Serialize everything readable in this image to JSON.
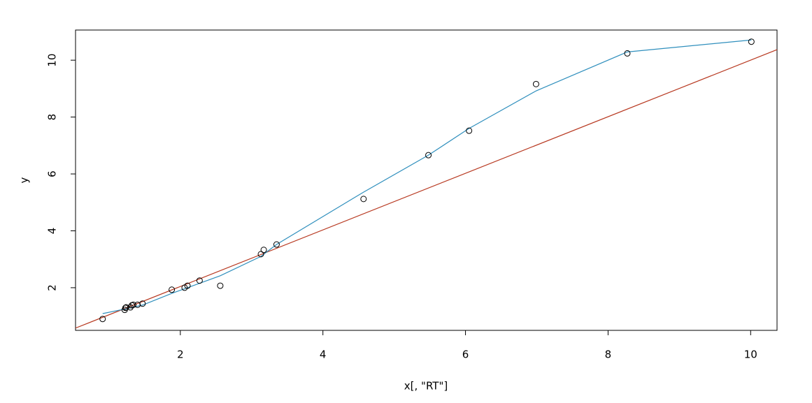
{
  "chart_data": {
    "type": "scatter",
    "xlabel": "x[, \"RT\"]",
    "ylabel": "y",
    "x": [
      0.91,
      1.22,
      1.23,
      1.24,
      1.3,
      1.32,
      1.34,
      1.4,
      1.47,
      1.88,
      2.06,
      2.1,
      2.27,
      2.56,
      3.13,
      3.17,
      3.35,
      4.57,
      5.48,
      6.05,
      6.99,
      8.27,
      10.01
    ],
    "y": [
      0.9,
      1.22,
      1.29,
      1.31,
      1.31,
      1.38,
      1.4,
      1.4,
      1.44,
      1.93,
      2.0,
      2.07,
      2.25,
      2.07,
      3.18,
      3.33,
      3.52,
      5.12,
      6.66,
      7.52,
      9.16,
      10.24,
      10.65
    ],
    "point_color": "#000000",
    "lines": [
      {
        "color": "#b83a22",
        "x": [
          0.53,
          10.37
        ],
        "y": [
          0.58,
          10.37
        ]
      },
      {
        "color": "#2f8fbd",
        "x": [
          0.91,
          1.24,
          1.47,
          1.88,
          2.1,
          2.56,
          3.13,
          3.35,
          4.57,
          5.48,
          6.05,
          6.99,
          8.27,
          10.01
        ],
        "y": [
          1.09,
          1.26,
          1.39,
          1.8,
          2.0,
          2.42,
          3.1,
          3.52,
          5.36,
          6.66,
          7.6,
          8.92,
          10.29,
          10.71
        ]
      }
    ],
    "xlim": [
      0.53,
      10.37
    ],
    "ylim": [
      0.5,
      11.06
    ],
    "xticks": [
      2,
      4,
      6,
      8,
      10
    ],
    "yticks": [
      2,
      4,
      6,
      8,
      10
    ]
  }
}
